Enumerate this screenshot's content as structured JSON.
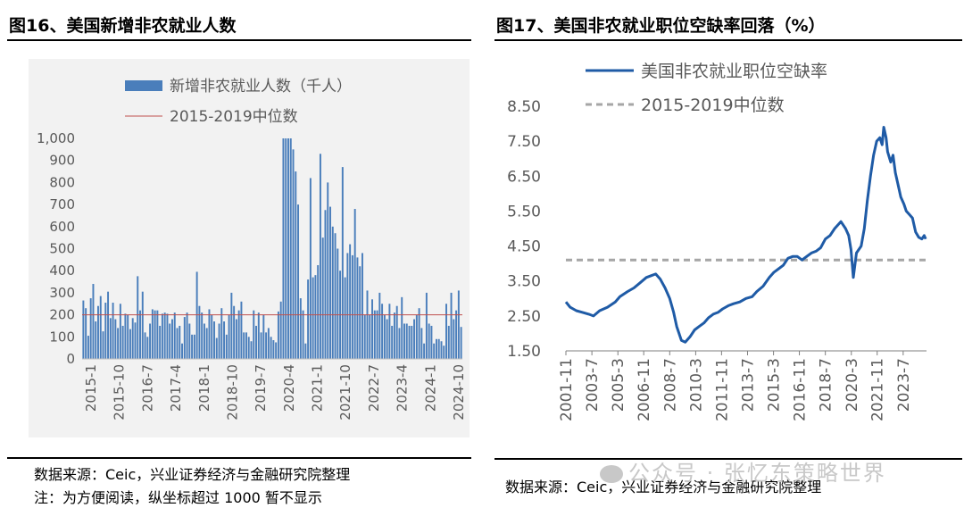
{
  "left": {
    "title": "图16、美国新增非农就业人数",
    "source": "数据来源：Ceic，兴业证券经济与金融研究院整理",
    "note": "注：为方便阅读，纵坐标超过 1000 暂不显示"
  },
  "right": {
    "title": "图17、美国非农就业职位空缺率回落（%）",
    "source": "数据来源：Ceic，兴业证券经济与金融研究院整理"
  },
  "watermark": "公众号 · 张忆东策略世界",
  "colors": {
    "bar": "#4a7ebb",
    "median_left": "#c0504d",
    "line": "#1f5ba6",
    "median_right": "#a6a6a6",
    "panel_bg": "#f2f2f2"
  },
  "chart_data": [
    {
      "type": "bar",
      "series": [
        {
          "name": "新增非农就业人数（千人）",
          "values": [
            265,
            230,
            105,
            275,
            340,
            170,
            240,
            285,
            125,
            255,
            305,
            185,
            255,
            180,
            140,
            250,
            150,
            205,
            200,
            135,
            185,
            165,
            375,
            220,
            305,
            120,
            100,
            160,
            225,
            220,
            220,
            150,
            205,
            210,
            205,
            160,
            180,
            210,
            140,
            150,
            70,
            190,
            210,
            160,
            110,
            110,
            395,
            240,
            210,
            160,
            140,
            225,
            200,
            170,
            95,
            160,
            230,
            170,
            110,
            200,
            300,
            240,
            180,
            220,
            260,
            120,
            120,
            100,
            80,
            220,
            150,
            210,
            120,
            200,
            120,
            140,
            100,
            85,
            75,
            215,
            260,
            1000,
            1000,
            1000,
            1000,
            950,
            850,
            700,
            275,
            220,
            70,
            360,
            820,
            370,
            380,
            425,
            930,
            550,
            675,
            800,
            690,
            600,
            570,
            500,
            400,
            870,
            370,
            480,
            520,
            470,
            680,
            460,
            420,
            480,
            200,
            310,
            200,
            270,
            220,
            220,
            300,
            250,
            200,
            180,
            250,
            150,
            210,
            240,
            140,
            280,
            160,
            160,
            150,
            150,
            180,
            200,
            230,
            140,
            70,
            300,
            160,
            150,
            70,
            90,
            90,
            80,
            60,
            250,
            150,
            300,
            180,
            220,
            310,
            145
          ]
        }
      ],
      "median": {
        "name": "2015-2019中位数",
        "value": 200
      },
      "x_tick_labels": [
        "2015-1",
        "2015-10",
        "2016-7",
        "2017-4",
        "2018-1",
        "2018-10",
        "2019-7",
        "2020-4",
        "2021-1",
        "2021-10",
        "2022-7",
        "2023-4",
        "2024-1",
        "2024-10"
      ],
      "ylim": [
        0,
        1000
      ],
      "y_ticks": [
        0,
        100,
        200,
        300,
        400,
        500,
        600,
        700,
        800,
        900,
        1000
      ],
      "y_tick_labels": [
        "0",
        "100",
        "200",
        "300",
        "400",
        "500",
        "600",
        "700",
        "800",
        "900",
        "1,000"
      ]
    },
    {
      "type": "line",
      "series": [
        {
          "name": "美国非农就业职位空缺率",
          "points": [
            [
              2001.83,
              2.9
            ],
            [
              2002.1,
              2.75
            ],
            [
              2002.5,
              2.65
            ],
            [
              2002.9,
              2.6
            ],
            [
              2003.3,
              2.55
            ],
            [
              2003.6,
              2.5
            ],
            [
              2004.0,
              2.65
            ],
            [
              2004.5,
              2.75
            ],
            [
              2005.0,
              2.9
            ],
            [
              2005.3,
              3.05
            ],
            [
              2005.8,
              3.2
            ],
            [
              2006.2,
              3.3
            ],
            [
              2006.6,
              3.45
            ],
            [
              2007.0,
              3.6
            ],
            [
              2007.3,
              3.65
            ],
            [
              2007.6,
              3.7
            ],
            [
              2007.9,
              3.55
            ],
            [
              2008.2,
              3.3
            ],
            [
              2008.5,
              3.0
            ],
            [
              2008.75,
              2.6
            ],
            [
              2008.95,
              2.2
            ],
            [
              2009.25,
              1.8
            ],
            [
              2009.5,
              1.75
            ],
            [
              2009.8,
              1.9
            ],
            [
              2010.1,
              2.1
            ],
            [
              2010.4,
              2.2
            ],
            [
              2010.7,
              2.3
            ],
            [
              2011.0,
              2.45
            ],
            [
              2011.3,
              2.55
            ],
            [
              2011.6,
              2.6
            ],
            [
              2011.9,
              2.7
            ],
            [
              2012.3,
              2.8
            ],
            [
              2012.6,
              2.85
            ],
            [
              2013.0,
              2.9
            ],
            [
              2013.4,
              3.0
            ],
            [
              2013.8,
              3.05
            ],
            [
              2014.1,
              3.2
            ],
            [
              2014.5,
              3.35
            ],
            [
              2014.9,
              3.6
            ],
            [
              2015.2,
              3.75
            ],
            [
              2015.5,
              3.85
            ],
            [
              2015.8,
              3.95
            ],
            [
              2016.1,
              4.15
            ],
            [
              2016.4,
              4.2
            ],
            [
              2016.7,
              4.2
            ],
            [
              2017.0,
              4.1
            ],
            [
              2017.3,
              4.2
            ],
            [
              2017.6,
              4.3
            ],
            [
              2017.9,
              4.35
            ],
            [
              2018.2,
              4.45
            ],
            [
              2018.5,
              4.7
            ],
            [
              2018.8,
              4.8
            ],
            [
              2019.1,
              5.0
            ],
            [
              2019.3,
              5.1
            ],
            [
              2019.5,
              5.2
            ],
            [
              2019.8,
              5.0
            ],
            [
              2020.0,
              4.8
            ],
            [
              2020.15,
              4.4
            ],
            [
              2020.3,
              3.6
            ],
            [
              2020.5,
              4.3
            ],
            [
              2020.8,
              4.5
            ],
            [
              2021.0,
              5.0
            ],
            [
              2021.2,
              5.8
            ],
            [
              2021.4,
              6.5
            ],
            [
              2021.6,
              7.1
            ],
            [
              2021.8,
              7.5
            ],
            [
              2022.0,
              7.6
            ],
            [
              2022.15,
              7.4
            ],
            [
              2022.25,
              7.9
            ],
            [
              2022.4,
              7.6
            ],
            [
              2022.5,
              7.2
            ],
            [
              2022.7,
              6.9
            ],
            [
              2022.85,
              7.1
            ],
            [
              2023.0,
              6.6
            ],
            [
              2023.2,
              6.2
            ],
            [
              2023.35,
              5.9
            ],
            [
              2023.55,
              5.7
            ],
            [
              2023.7,
              5.5
            ],
            [
              2023.9,
              5.4
            ],
            [
              2024.1,
              5.3
            ],
            [
              2024.3,
              4.9
            ],
            [
              2024.5,
              4.75
            ],
            [
              2024.7,
              4.7
            ],
            [
              2024.85,
              4.8
            ],
            [
              2024.95,
              4.7
            ]
          ]
        }
      ],
      "median": {
        "name": "2015-2019中位数",
        "value": 4.1
      },
      "x_tick_labels": [
        "2001-11",
        "2003-7",
        "2005-3",
        "2006-11",
        "2008-7",
        "2010-3",
        "2011-11",
        "2013-7",
        "2015-3",
        "2016-11",
        "2018-7",
        "2020-3",
        "2021-11",
        "2023-7"
      ],
      "x_tick_values": [
        2001.83,
        2003.5,
        2005.17,
        2006.83,
        2008.5,
        2010.17,
        2011.83,
        2013.5,
        2015.17,
        2016.83,
        2018.5,
        2020.17,
        2021.83,
        2023.5
      ],
      "xlim": [
        2001.83,
        2025.0
      ],
      "ylim": [
        1.5,
        8.5
      ],
      "y_ticks": [
        1.5,
        2.5,
        3.5,
        4.5,
        5.5,
        6.5,
        7.5,
        8.5
      ],
      "y_tick_labels": [
        "1.50",
        "2.50",
        "3.50",
        "4.50",
        "5.50",
        "6.50",
        "7.50",
        "8.50"
      ]
    }
  ]
}
